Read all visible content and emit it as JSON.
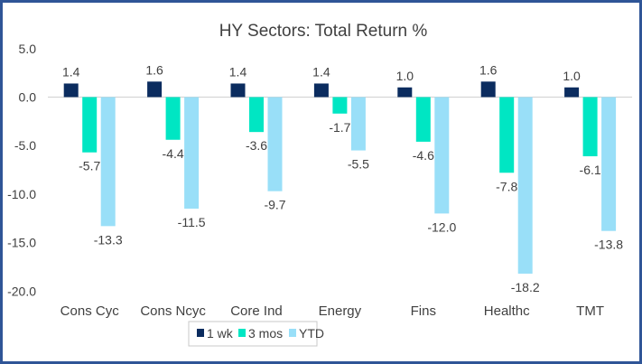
{
  "chart_data": {
    "type": "bar",
    "title": "HY Sectors: Total Return %",
    "categories": [
      "Cons Cyc",
      "Cons Ncyc",
      "Core Ind",
      "Energy",
      "Fins",
      "Healthc",
      "TMT"
    ],
    "series": [
      {
        "name": "1 wk",
        "color": "#0B2C5F",
        "values": [
          1.4,
          1.6,
          1.4,
          1.4,
          1.0,
          1.6,
          1.0
        ]
      },
      {
        "name": "3 mos",
        "color": "#00E6C3",
        "values": [
          -5.7,
          -4.4,
          -3.6,
          -1.7,
          -4.6,
          -7.8,
          -6.1
        ]
      },
      {
        "name": "YTD",
        "color": "#99DFF8",
        "values": [
          -13.3,
          -11.5,
          -9.7,
          -5.5,
          -12.0,
          -18.2,
          -13.8
        ]
      }
    ],
    "ylim": [
      -20,
      5
    ],
    "yticks": [
      "5.0",
      "0.0",
      "-5.0",
      "-10.0",
      "-15.0",
      "-20.0"
    ],
    "ytick_values": [
      5,
      0,
      -5,
      -10,
      -15,
      -20
    ],
    "grid": false,
    "legend": "bottom",
    "data_labels": true,
    "border_color": "#2F5597"
  }
}
